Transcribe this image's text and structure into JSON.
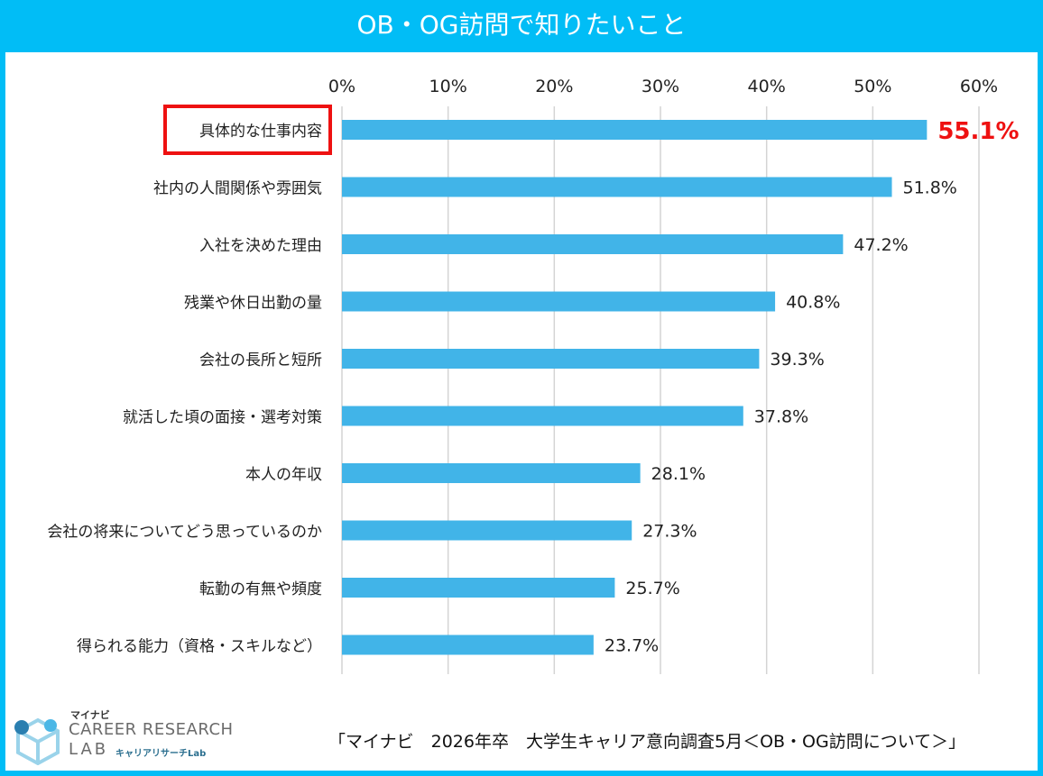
{
  "title": "OB・OG訪問で知りたいこと",
  "colors": {
    "frame": "#01bdf6",
    "bar": "#41b4e8",
    "highlight": "#ee1111",
    "grid": "#d4d4d4"
  },
  "chart_data": {
    "type": "bar",
    "orientation": "horizontal",
    "title": "",
    "xlabel": "",
    "ylabel": "",
    "xlim": [
      0,
      60
    ],
    "ticks": [
      "0%",
      "10%",
      "20%",
      "30%",
      "40%",
      "50%",
      "60%"
    ],
    "tick_values": [
      0,
      10,
      20,
      30,
      40,
      50,
      60
    ],
    "grid": true,
    "categories": [
      "具体的な仕事内容",
      "社内の人間関係や雰囲気",
      "入社を決めた理由",
      "残業や休日出勤の量",
      "会社の長所と短所",
      "就活した頃の面接・選考対策",
      "本人の年収",
      "会社の将来についてどう思っているのか",
      "転勤の有無や頻度",
      "得られる能力（資格・スキルなど）"
    ],
    "values": [
      55.1,
      51.8,
      47.2,
      40.8,
      39.3,
      37.8,
      28.1,
      27.3,
      25.7,
      23.7
    ],
    "value_labels": [
      "55.1%",
      "51.8%",
      "47.2%",
      "40.8%",
      "39.3%",
      "37.8%",
      "28.1%",
      "27.3%",
      "25.7%",
      "23.7%"
    ],
    "highlight_index": 0
  },
  "logo": {
    "kana": "マイナビ",
    "main": "CAREER RESEARCH",
    "lab": "LAB",
    "sub": "キャリアリサーチLab"
  },
  "source": "「マイナビ　2026年卒　大学生キャリア意向調査5月＜OB・OG訪問について＞」"
}
